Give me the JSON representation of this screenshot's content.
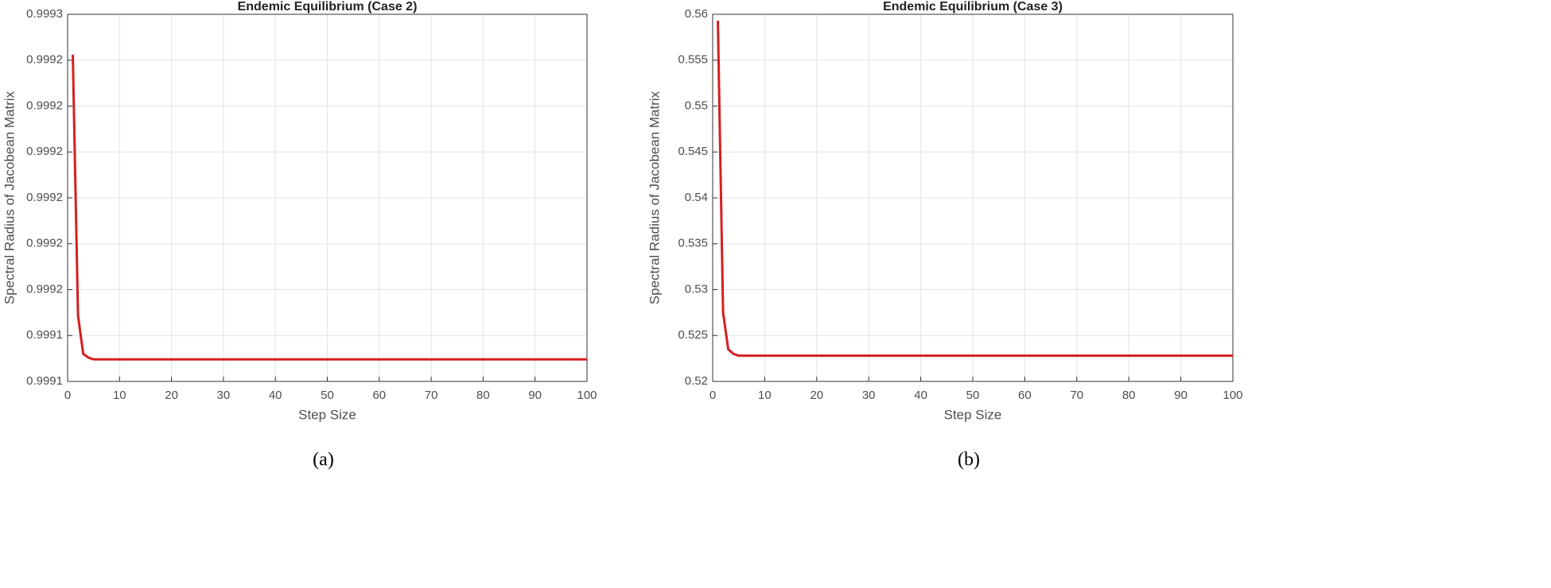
{
  "chart_data": [
    {
      "type": "line",
      "title": "Endemic Equilibrium (Case 2)",
      "xlabel": "Step Size",
      "ylabel": "Spectral Radius of Jacobean Matrix",
      "caption": "(a)",
      "x": [
        1,
        2,
        3,
        4,
        5,
        100
      ],
      "series": [
        {
          "color": "#d42020",
          "values": [
            0.999278,
            0.999136,
            0.999115,
            0.999113,
            0.999112,
            0.999112
          ]
        }
      ],
      "xlim": [
        0,
        100
      ],
      "xticks": [
        0,
        10,
        20,
        30,
        40,
        50,
        60,
        70,
        80,
        90,
        100
      ],
      "ylim": [
        0.9991,
        0.9993
      ],
      "yticks": [
        {
          "value": 0.9991,
          "label": "0.9991"
        },
        {
          "value": 0.999125,
          "label": "0.9991"
        },
        {
          "value": 0.99915,
          "label": "0.9992"
        },
        {
          "value": 0.999175,
          "label": "0.9992"
        },
        {
          "value": 0.9992,
          "label": "0.9992"
        },
        {
          "value": 0.999225,
          "label": "0.9992"
        },
        {
          "value": 0.99925,
          "label": "0.9992"
        },
        {
          "value": 0.999275,
          "label": "0.9992"
        },
        {
          "value": 0.9993,
          "label": "0.9993"
        }
      ],
      "grid": true
    },
    {
      "type": "line",
      "title": "Endemic Equilibrium (Case 3)",
      "xlabel": "Step Size",
      "ylabel": "Spectral Radius of Jacobean Matrix",
      "caption": "(b)",
      "x": [
        1,
        2,
        3,
        4,
        5,
        100
      ],
      "series": [
        {
          "color": "#d42020",
          "values": [
            0.5593,
            0.5275,
            0.5235,
            0.523,
            0.5228,
            0.5228
          ]
        }
      ],
      "xlim": [
        0,
        100
      ],
      "xticks": [
        0,
        10,
        20,
        30,
        40,
        50,
        60,
        70,
        80,
        90,
        100
      ],
      "ylim": [
        0.52,
        0.56
      ],
      "yticks": [
        0.52,
        0.525,
        0.53,
        0.535,
        0.54,
        0.545,
        0.55,
        0.555,
        0.56
      ],
      "grid": true
    }
  ]
}
